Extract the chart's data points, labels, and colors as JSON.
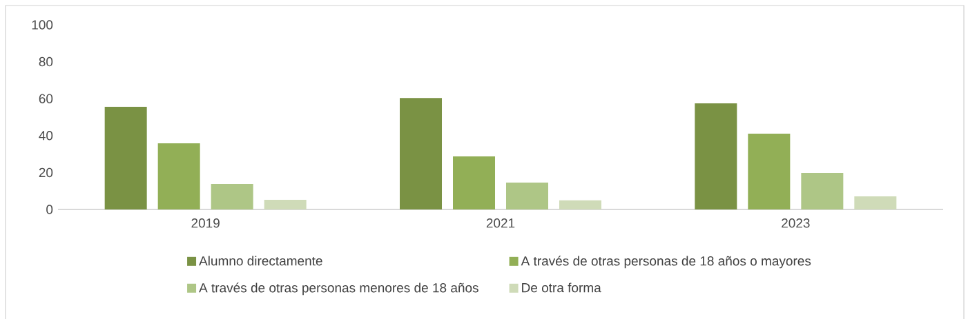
{
  "chart_data": {
    "type": "bar",
    "categories": [
      "2019",
      "2021",
      "2023"
    ],
    "series": [
      {
        "name": "Alumno directamente",
        "color": "#7a9244",
        "values": [
          55.6,
          60.4,
          57.5
        ]
      },
      {
        "name": "A través de otras personas de 18 años o mayores",
        "color": "#92af56",
        "values": [
          35.8,
          28.7,
          41.0
        ]
      },
      {
        "name": "A través de otras personas menores de 18 años",
        "color": "#aec686",
        "values": [
          13.8,
          14.6,
          19.8
        ]
      },
      {
        "name": "De otra forma",
        "color": "#cfdbb8",
        "values": [
          5.2,
          4.9,
          7.1
        ]
      }
    ],
    "ylim": [
      0,
      100
    ],
    "yticks": [
      0,
      20,
      40,
      60,
      80,
      100
    ],
    "legend": "bottom"
  }
}
